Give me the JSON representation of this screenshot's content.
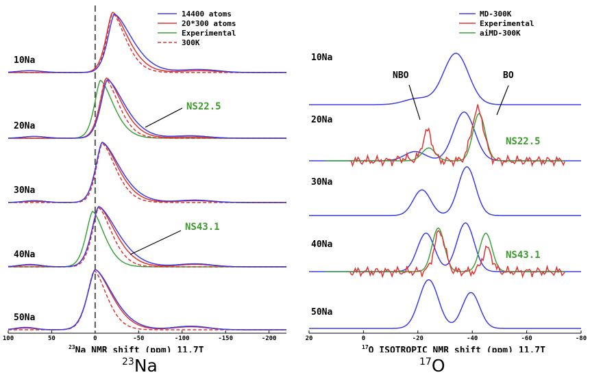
{
  "colors": {
    "blue": "#3a3ae6",
    "red": "#e03030",
    "green": "#3aa13a",
    "annot_green": "#3a9a2a",
    "axis": "#000000"
  },
  "panels": {
    "left": {
      "caption_sup": "23",
      "caption_main": "Na",
      "xlabel_sup": "23",
      "xlabel_main": "Na NMR shift (ppm) 11.7T"
    },
    "right": {
      "caption_sup": "17",
      "caption_main": "O",
      "xlabel_sup": "17",
      "xlabel_main": "O ISOTROPIC NMR shift (ppm) 11.7T"
    }
  },
  "chart_data": [
    {
      "type": "line",
      "xlabel": "23Na NMR shift (ppm) 11.7T",
      "xlim": [
        100,
        -220
      ],
      "xticks": [
        "100",
        "50",
        "0",
        "-50",
        "-100",
        "-150",
        "-200"
      ],
      "xtick_values": [
        100,
        50,
        0,
        -50,
        -100,
        -150,
        -200
      ],
      "dashed_vline_x": 0,
      "row_labels": [
        "10Na",
        "20Na",
        "30Na",
        "40Na",
        "50Na"
      ],
      "annotations": [
        {
          "text": "NS22.5",
          "row": "20Na"
        },
        {
          "text": "NS43.1",
          "row": "40Na"
        }
      ],
      "legend": {
        "placement": "top-right",
        "entries": [
          {
            "name": "14400 atoms",
            "color": "blue",
            "style": "solid"
          },
          {
            "name": "20*300 atoms",
            "color": "red",
            "style": "solid"
          },
          {
            "name": "Experimental",
            "color": "green",
            "style": "solid"
          },
          {
            "name": "300K",
            "color": "red",
            "style": "dashed"
          }
        ]
      },
      "rows": [
        {
          "label": "10Na",
          "series": [
            {
              "name": "14400 atoms",
              "color": "blue",
              "style": "solid",
              "peak": -22,
              "wl": 11,
              "wr": 30,
              "amp": 0.97,
              "bumps": [
                [
                  -120,
                  0.05,
                  30
                ],
                [
                  75,
                  0.03,
                  20
                ]
              ]
            },
            {
              "name": "20*300 atoms",
              "color": "red",
              "style": "solid",
              "peak": -20,
              "wl": 11,
              "wr": 26,
              "amp": 1.0,
              "bumps": [
                [
                  -120,
                  0.03,
                  30
                ]
              ]
            },
            {
              "name": "300K",
              "color": "red",
              "style": "dashed",
              "peak": -20,
              "wl": 10,
              "wr": 22,
              "amp": 0.98,
              "bumps": []
            }
          ]
        },
        {
          "label": "20Na",
          "series": [
            {
              "name": "14400 atoms",
              "color": "blue",
              "style": "solid",
              "peak": -14,
              "wl": 11,
              "wr": 29,
              "amp": 0.97,
              "bumps": [
                [
                  -110,
                  0.04,
                  28
                ],
                [
                  70,
                  0.03,
                  18
                ]
              ]
            },
            {
              "name": "20*300 atoms",
              "color": "red",
              "style": "solid",
              "peak": -13,
              "wl": 11,
              "wr": 26,
              "amp": 1.0,
              "bumps": [
                [
                  -110,
                  0.02,
                  28
                ]
              ]
            },
            {
              "name": "Experimental",
              "color": "green",
              "style": "solid",
              "peak": -6,
              "wl": 10,
              "wr": 22,
              "amp": 0.96,
              "bumps": []
            },
            {
              "name": "300K",
              "color": "red",
              "style": "dashed",
              "peak": -12,
              "wl": 10,
              "wr": 22,
              "amp": 0.98,
              "bumps": []
            }
          ]
        },
        {
          "label": "30Na",
          "series": [
            {
              "name": "14400 atoms",
              "color": "blue",
              "style": "solid",
              "peak": -8,
              "wl": 11,
              "wr": 30,
              "amp": 1.0,
              "bumps": [
                [
                  -115,
                  0.04,
                  28
                ],
                [
                  70,
                  0.03,
                  18
                ]
              ]
            },
            {
              "name": "20*300 atoms",
              "color": "red",
              "style": "solid",
              "peak": -8,
              "wl": 11,
              "wr": 27,
              "amp": 1.0,
              "bumps": [
                [
                  -115,
                  0.03,
                  28
                ],
                [
                  70,
                  0.02,
                  18
                ]
              ]
            },
            {
              "name": "300K",
              "color": "red",
              "style": "dashed",
              "peak": -8,
              "wl": 10,
              "wr": 23,
              "amp": 0.98,
              "bumps": []
            }
          ]
        },
        {
          "label": "40Na",
          "series": [
            {
              "name": "14400 atoms",
              "color": "blue",
              "style": "solid",
              "peak": -4,
              "wl": 12,
              "wr": 32,
              "amp": 1.0,
              "bumps": [
                [
                  -115,
                  0.05,
                  28
                ],
                [
                  75,
                  0.04,
                  18
                ]
              ]
            },
            {
              "name": "20*300 atoms",
              "color": "red",
              "style": "solid",
              "peak": -4,
              "wl": 12,
              "wr": 28,
              "amp": 1.0,
              "bumps": [
                [
                  -115,
                  0.04,
                  28
                ],
                [
                  75,
                  0.03,
                  18
                ]
              ]
            },
            {
              "name": "Experimental",
              "color": "green",
              "style": "solid",
              "peak": 3,
              "wl": 11,
              "wr": 20,
              "amp": 0.92,
              "bumps": []
            },
            {
              "name": "300K",
              "color": "red",
              "style": "dashed",
              "peak": -4,
              "wl": 11,
              "wr": 22,
              "amp": 0.98,
              "bumps": []
            }
          ]
        },
        {
          "label": "50Na",
          "series": [
            {
              "name": "14400 atoms",
              "color": "blue",
              "style": "solid",
              "peak": 0,
              "wl": 13,
              "wr": 30,
              "amp": 1.0,
              "bumps": [
                [
                  -110,
                  0.06,
                  28
                ],
                [
                  80,
                  0.04,
                  16
                ]
              ]
            },
            {
              "name": "20*300 atoms",
              "color": "red",
              "style": "solid",
              "peak": 0,
              "wl": 13,
              "wr": 28,
              "amp": 1.0,
              "bumps": [
                [
                  -110,
                  0.05,
                  28
                ],
                [
                  80,
                  0.03,
                  16
                ]
              ]
            },
            {
              "name": "300K",
              "color": "red",
              "style": "dashed",
              "peak": 1,
              "wl": 12,
              "wr": 21,
              "amp": 0.98,
              "bumps": []
            }
          ]
        }
      ]
    },
    {
      "type": "line",
      "xlabel": "17O ISOTROPIC NMR shift (ppm) 11.7T",
      "xlim": [
        20,
        -80
      ],
      "xticks": [
        "20",
        "0",
        "-20",
        "-40",
        "-60",
        "-80"
      ],
      "xtick_values": [
        20,
        0,
        -20,
        -40,
        -60,
        -80
      ],
      "row_labels": [
        "10Na",
        "20Na",
        "30Na",
        "40Na",
        "50Na"
      ],
      "annotations": [
        {
          "text": "NBO"
        },
        {
          "text": "BO"
        },
        {
          "text": "NS22.5",
          "row": "20Na"
        },
        {
          "text": "NS43.1",
          "row": "40Na"
        }
      ],
      "legend": {
        "placement": "top-right",
        "entries": [
          {
            "name": "MD-300K",
            "color": "blue",
            "style": "solid"
          },
          {
            "name": "Experimental",
            "color": "red",
            "style": "solid"
          },
          {
            "name": "aiMD-300K",
            "color": "green",
            "style": "solid"
          }
        ]
      },
      "rows": [
        {
          "label": "10Na",
          "series": [
            {
              "name": "MD-300K",
              "color": "blue",
              "peaks": [
                [
                  -34,
                  1.0,
                  6.5
                ],
                [
                  -20,
                  0.12,
                  7
                ]
              ]
            }
          ]
        },
        {
          "label": "20Na",
          "series": [
            {
              "name": "MD-300K",
              "color": "blue",
              "peaks": [
                [
                  -37,
                  0.95,
                  5.5
                ],
                [
                  -19,
                  0.18,
                  5.5
                ]
              ]
            },
            {
              "name": "Experimental",
              "color": "red",
              "noisy": true,
              "peaks": [
                [
                  -23.5,
                  0.58,
                  2.5
                ],
                [
                  -42,
                  1.0,
                  3.2
                ],
                [
                  -15,
                  0.05,
                  3
                ]
              ]
            },
            {
              "name": "aiMD-300K",
              "color": "green",
              "peaks": [
                [
                  -42.5,
                  0.92,
                  3.2
                ],
                [
                  -24,
                  0.25,
                  3.5
                ]
              ]
            }
          ]
        },
        {
          "label": "30Na",
          "series": [
            {
              "name": "MD-300K",
              "color": "blue",
              "peaks": [
                [
                  -38,
                  0.95,
                  4.5
                ],
                [
                  -21.5,
                  0.5,
                  4.5
                ]
              ]
            }
          ]
        },
        {
          "label": "40Na",
          "series": [
            {
              "name": "MD-300K",
              "color": "blue",
              "peaks": [
                [
                  -23,
                  0.75,
                  4.5
                ],
                [
                  -37.5,
                  0.95,
                  4.5
                ]
              ]
            },
            {
              "name": "Experimental",
              "color": "red",
              "noisy": true,
              "peaks": [
                [
                  -28,
                  0.78,
                  2.8
                ],
                [
                  -45.5,
                  0.45,
                  2.5
                ]
              ]
            },
            {
              "name": "aiMD-300K",
              "color": "green",
              "peaks": [
                [
                  -27.5,
                  0.85,
                  3.2
                ],
                [
                  -45,
                  0.75,
                  3.2
                ]
              ]
            }
          ]
        },
        {
          "label": "50Na",
          "series": [
            {
              "name": "MD-300K",
              "color": "blue",
              "peaks": [
                [
                  -24,
                  0.95,
                  5
                ],
                [
                  -39.5,
                  0.7,
                  4.5
                ]
              ]
            }
          ]
        }
      ]
    }
  ]
}
